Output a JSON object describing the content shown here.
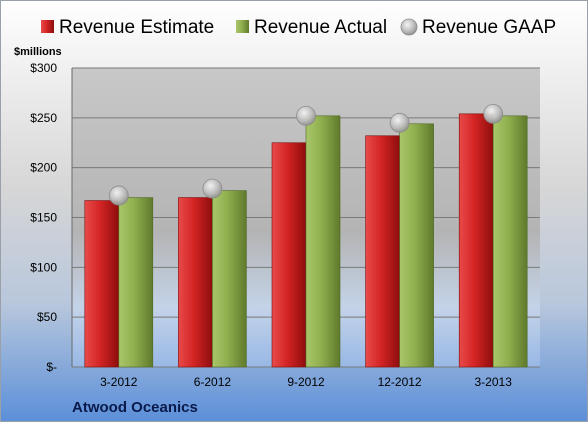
{
  "chart_data": {
    "type": "bar",
    "title": "",
    "company": "Atwood Oceanics",
    "ylabel": "$millions",
    "xlabel": "",
    "categories": [
      "3-2012",
      "6-2012",
      "9-2012",
      "12-2012",
      "3-2013"
    ],
    "series": [
      {
        "name": "Revenue Estimate",
        "kind": "bar",
        "color": "#cc1f1f",
        "values": [
          167,
          170,
          225,
          232,
          254
        ]
      },
      {
        "name": "Revenue Actual",
        "kind": "bar",
        "color": "#8fae4e",
        "values": [
          170,
          177,
          252,
          244,
          252
        ]
      },
      {
        "name": "Revenue GAAP",
        "kind": "marker",
        "color": "#b8b8b8",
        "values": [
          172,
          179,
          252,
          245,
          254
        ]
      }
    ],
    "ylim": [
      0,
      300
    ],
    "yticks": [
      0,
      50,
      100,
      150,
      200,
      250,
      300
    ],
    "ytick_labels": [
      "$-",
      "$50",
      "$100",
      "$150",
      "$200",
      "$250",
      "$300"
    ],
    "grid": true,
    "legend_position": "top"
  }
}
